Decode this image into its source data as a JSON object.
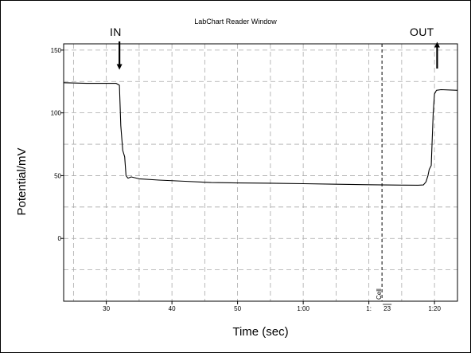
{
  "window_title": "LabChart Reader Window",
  "annotations": {
    "in_label": "IN",
    "out_label": "OUT",
    "cursor_tag": "Cell",
    "cursor_value": "23"
  },
  "chart_data": {
    "type": "line",
    "title": "LabChart Reader Window",
    "xlabel": "Time (sec)",
    "ylabel": "Potential/mV",
    "xlim": [
      23.5,
      83.5
    ],
    "ylim": [
      -50,
      155
    ],
    "x_ticks": [
      {
        "value": 30,
        "label": "30"
      },
      {
        "value": 40,
        "label": "40"
      },
      {
        "value": 50,
        "label": "50"
      },
      {
        "value": 60,
        "label": "1:00"
      },
      {
        "value": 70,
        "label": "1:"
      },
      {
        "value": 80,
        "label": "1:20"
      }
    ],
    "y_ticks": [
      {
        "value": 150,
        "label": "150"
      },
      {
        "value": 100,
        "label": "100"
      },
      {
        "value": 50,
        "label": "50"
      },
      {
        "value": 0,
        "label": "0"
      }
    ],
    "grid": true,
    "cursor_x": 72,
    "events": [
      {
        "label": "IN",
        "x": 32.0,
        "arrow": "down"
      },
      {
        "label": "OUT",
        "x": 80.4,
        "arrow": "up"
      }
    ],
    "series": [
      {
        "x": [
          23.5,
          27,
          30,
          31.5,
          32.0,
          32.2,
          32.5,
          32.8,
          33.0,
          33.3,
          33.8,
          35,
          38,
          42,
          46,
          50,
          55,
          60,
          65,
          70,
          75,
          77.5,
          78.3,
          78.7,
          79.0,
          79.2,
          79.5,
          79.8,
          80.0,
          80.3,
          81,
          83.5
        ],
        "y": [
          124,
          123.5,
          123.5,
          123.5,
          122,
          90,
          70,
          65,
          50,
          48,
          49,
          47.5,
          46.5,
          45.5,
          44.5,
          44.2,
          44,
          43.6,
          43.2,
          42.8,
          42.5,
          42.4,
          42.6,
          45,
          50,
          55,
          58,
          100,
          115,
          118,
          118.5,
          118
        ]
      }
    ]
  }
}
